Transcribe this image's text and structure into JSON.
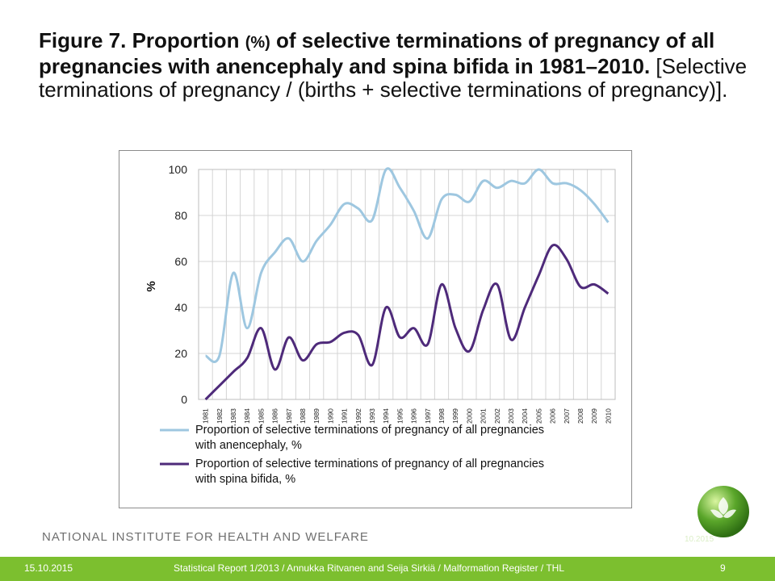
{
  "title": {
    "bold": "Figure 7. Proportion",
    "small": "(%)",
    "bold2": "of selective terminations of pregnancy of all pregnancies with anencephaly and spina bifida in 1981–2010.",
    "normal": "[Selective terminations of pregnancy / (births + selective terminations of pregnancy)]."
  },
  "chart_data": {
    "type": "line",
    "ylabel": "%",
    "xlabel": "",
    "ylim": [
      0,
      100
    ],
    "yticks": [
      0,
      20,
      40,
      60,
      80,
      100
    ],
    "grid": true,
    "legend_position": "bottom",
    "x": [
      "1981",
      "1982",
      "1983",
      "1984",
      "1985",
      "1986",
      "1987",
      "1988",
      "1989",
      "1990",
      "1991",
      "1992",
      "1993",
      "1994",
      "1995",
      "1996",
      "1997",
      "1998",
      "1999",
      "2000",
      "2001",
      "2002",
      "2003",
      "2004",
      "2005",
      "2006",
      "2007",
      "2008",
      "2009",
      "2010"
    ],
    "series": [
      {
        "name": "Proportion of selective terminations of pregnancy of all pregnancies with anencephaly, %",
        "color": "#9ec7e0",
        "values": [
          19,
          19,
          55,
          31,
          55,
          64,
          70,
          60,
          69,
          76,
          85,
          83,
          78,
          100,
          92,
          82,
          70,
          87,
          89,
          86,
          95,
          92,
          95,
          94,
          100,
          94,
          94,
          91,
          85,
          77
        ]
      },
      {
        "name": "Proportion of selective terminations of pregnancy of all pregnancies with spina bifida, %",
        "color": "#4e2a7a",
        "values": [
          0,
          6,
          12,
          18,
          31,
          13,
          27,
          17,
          24,
          25,
          29,
          28,
          15,
          40,
          27,
          31,
          24,
          50,
          31,
          21,
          39,
          50,
          26,
          40,
          54,
          67,
          61,
          49,
          50,
          46
        ]
      }
    ]
  },
  "footer": {
    "org": "NATIONAL INSTITUTE FOR HEALTH AND WELFARE",
    "date": "15.10.2015",
    "citation": "Statistical Report 1/2013 / Annukka Ritvanen and Seija Sirkiä / Malformation Register / THL",
    "page": "9",
    "logo_date": "10.2015"
  },
  "colors": {
    "footer_bar": "#7cbf2f",
    "logo_green": "#5aa62a"
  }
}
